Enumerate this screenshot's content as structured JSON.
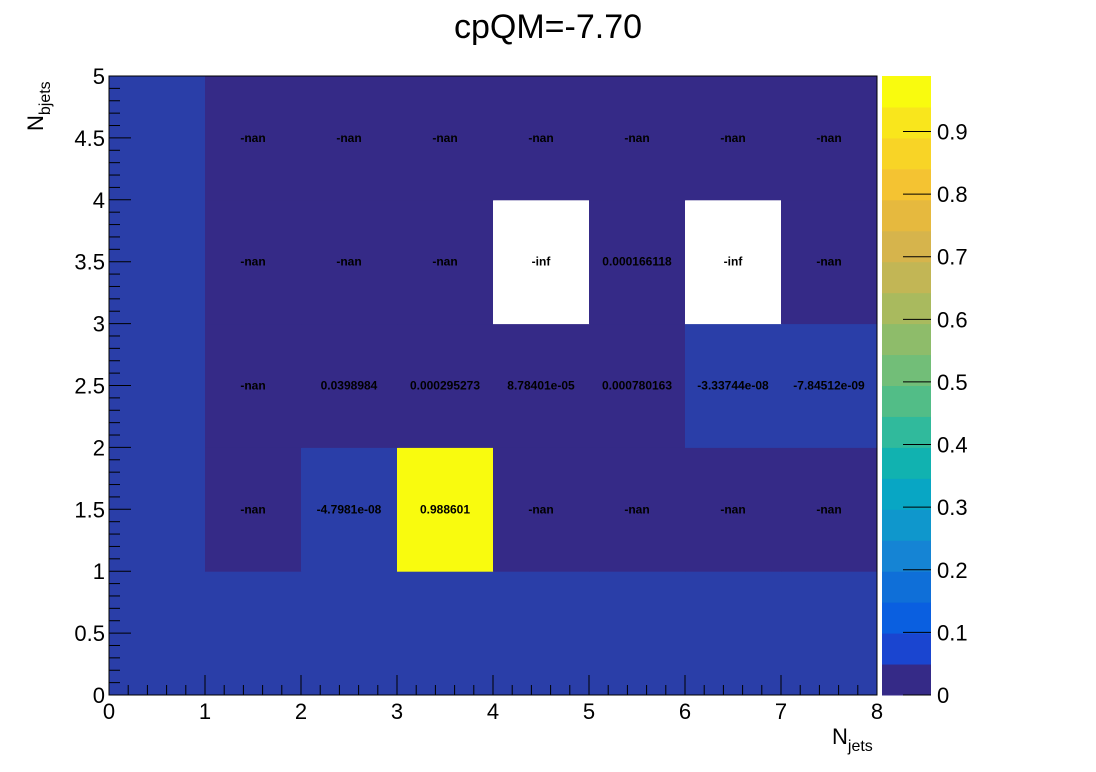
{
  "chart_data": {
    "type": "heatmap",
    "title": "cpQM=-7.70",
    "xlabel": {
      "main": "N",
      "sub": "jets"
    },
    "ylabel": {
      "main": "N",
      "sub": "bjets"
    },
    "xlim": [
      0,
      8
    ],
    "ylim": [
      0,
      5
    ],
    "x_bin_edges": [
      0,
      1,
      2,
      3,
      4,
      5,
      6,
      7,
      8
    ],
    "y_bin_edges": [
      0,
      1,
      2,
      3,
      4,
      5
    ],
    "x_ticks": [
      "0",
      "1",
      "2",
      "3",
      "4",
      "5",
      "6",
      "7",
      "8"
    ],
    "y_ticks": [
      "0",
      "0.5",
      "1",
      "1.5",
      "2",
      "2.5",
      "3",
      "3.5",
      "4",
      "4.5",
      "5"
    ],
    "y_tick_values": [
      0,
      0.5,
      1,
      1.5,
      2,
      2.5,
      3,
      3.5,
      4,
      4.5,
      5
    ],
    "colorbar": {
      "range": [
        0,
        0.9886
      ],
      "ticks": [
        "0",
        "0.1",
        "0.2",
        "0.3",
        "0.4",
        "0.5",
        "0.6",
        "0.7",
        "0.8",
        "0.9"
      ],
      "tick_values": [
        0,
        0.1,
        0.2,
        0.3,
        0.4,
        0.5,
        0.6,
        0.7,
        0.8,
        0.9
      ]
    },
    "colors": {
      "empty": "#352a87",
      "nan": "#352a87",
      "zero": "#2a3ea8",
      "undefined_inf": "#ffffff",
      "palette": [
        "#352a87",
        "#1a45d0",
        "#0a5fe0",
        "#0f6fd8",
        "#1584d4",
        "#0f97cc",
        "#08a6c4",
        "#11b2b0",
        "#30ba9c",
        "#52bd87",
        "#72be78",
        "#8ebc6a",
        "#a9ba5e",
        "#c2b655",
        "#d6b44c",
        "#e6b93e",
        "#f4c332",
        "#f8d426",
        "#f9e61c",
        "#f9fb0e"
      ]
    },
    "cells": [
      {
        "x": 0.5,
        "y": 0.5,
        "value": 0,
        "label": ""
      },
      {
        "x": 1.5,
        "y": 0.5,
        "value": 0,
        "label": ""
      },
      {
        "x": 2.5,
        "y": 0.5,
        "value": 0,
        "label": ""
      },
      {
        "x": 3.5,
        "y": 0.5,
        "value": 0,
        "label": ""
      },
      {
        "x": 4.5,
        "y": 0.5,
        "value": 0,
        "label": ""
      },
      {
        "x": 5.5,
        "y": 0.5,
        "value": 0,
        "label": ""
      },
      {
        "x": 6.5,
        "y": 0.5,
        "value": 0,
        "label": ""
      },
      {
        "x": 7.5,
        "y": 0.5,
        "value": 0,
        "label": ""
      },
      {
        "x": 0.5,
        "y": 1.5,
        "value": 0,
        "label": ""
      },
      {
        "x": 0.5,
        "y": 2.5,
        "value": 0,
        "label": ""
      },
      {
        "x": 0.5,
        "y": 3.5,
        "value": 0,
        "label": ""
      },
      {
        "x": 0.5,
        "y": 4.5,
        "value": 0,
        "label": ""
      },
      {
        "x": 1.5,
        "y": 1.5,
        "value": null,
        "label": "-nan"
      },
      {
        "x": 2.5,
        "y": 1.5,
        "value": -4.7981e-08,
        "label": "-4.7981e-08"
      },
      {
        "x": 3.5,
        "y": 1.5,
        "value": 0.988601,
        "label": "0.988601"
      },
      {
        "x": 4.5,
        "y": 1.5,
        "value": null,
        "label": "-nan"
      },
      {
        "x": 5.5,
        "y": 1.5,
        "value": null,
        "label": "-nan"
      },
      {
        "x": 6.5,
        "y": 1.5,
        "value": null,
        "label": "-nan"
      },
      {
        "x": 7.5,
        "y": 1.5,
        "value": null,
        "label": "-nan"
      },
      {
        "x": 1.5,
        "y": 2.5,
        "value": null,
        "label": "-nan"
      },
      {
        "x": 2.5,
        "y": 2.5,
        "value": 0.0398984,
        "label": "0.0398984"
      },
      {
        "x": 3.5,
        "y": 2.5,
        "value": 0.000295273,
        "label": "0.000295273"
      },
      {
        "x": 4.5,
        "y": 2.5,
        "value": 8.78401e-05,
        "label": "8.78401e-05"
      },
      {
        "x": 5.5,
        "y": 2.5,
        "value": 0.000780163,
        "label": "0.000780163"
      },
      {
        "x": 6.5,
        "y": 2.5,
        "value": -3.33744e-08,
        "label": "-3.33744e-08"
      },
      {
        "x": 7.5,
        "y": 2.5,
        "value": -7.84512e-09,
        "label": "-7.84512e-09"
      },
      {
        "x": 1.5,
        "y": 3.5,
        "value": null,
        "label": "-nan"
      },
      {
        "x": 2.5,
        "y": 3.5,
        "value": null,
        "label": "-nan"
      },
      {
        "x": 3.5,
        "y": 3.5,
        "value": null,
        "label": "-nan"
      },
      {
        "x": 4.5,
        "y": 3.5,
        "value": "-inf",
        "label": "-inf"
      },
      {
        "x": 5.5,
        "y": 3.5,
        "value": 0.000166118,
        "label": "0.000166118"
      },
      {
        "x": 6.5,
        "y": 3.5,
        "value": "-inf",
        "label": "-inf"
      },
      {
        "x": 7.5,
        "y": 3.5,
        "value": null,
        "label": "-nan"
      },
      {
        "x": 1.5,
        "y": 4.5,
        "value": null,
        "label": "-nan"
      },
      {
        "x": 2.5,
        "y": 4.5,
        "value": null,
        "label": "-nan"
      },
      {
        "x": 3.5,
        "y": 4.5,
        "value": null,
        "label": "-nan"
      },
      {
        "x": 4.5,
        "y": 4.5,
        "value": null,
        "label": "-nan"
      },
      {
        "x": 5.5,
        "y": 4.5,
        "value": null,
        "label": "-nan"
      },
      {
        "x": 6.5,
        "y": 4.5,
        "value": null,
        "label": "-nan"
      },
      {
        "x": 7.5,
        "y": 4.5,
        "value": null,
        "label": "-nan"
      }
    ]
  }
}
